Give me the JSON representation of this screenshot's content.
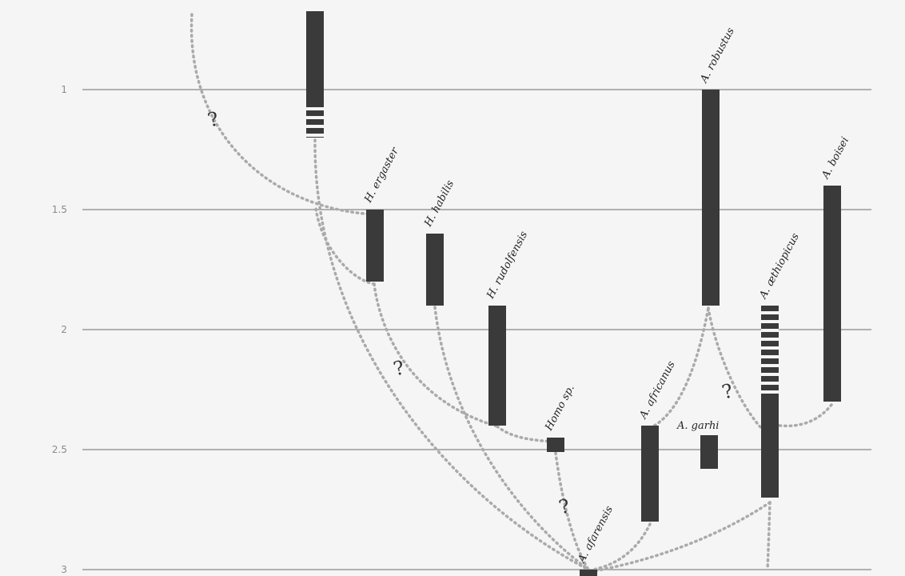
{
  "axis": {
    "ticks": [
      {
        "value": 1,
        "label": "1"
      },
      {
        "value": 1.5,
        "label": "1.5"
      },
      {
        "value": 2,
        "label": "2"
      },
      {
        "value": 2.5,
        "label": "2.5"
      },
      {
        "value": 3,
        "label": "3"
      }
    ]
  },
  "species": [
    {
      "id": "homo-erectus",
      "label": "",
      "start": 1.2,
      "end": 0.6,
      "dashed_from": 1.2,
      "dashed_to": 1.05
    },
    {
      "id": "h-ergaster",
      "label": "H. ergaster",
      "start": 1.8,
      "end": 1.5
    },
    {
      "id": "h-habilis",
      "label": "H. habilis",
      "start": 1.9,
      "end": 1.6
    },
    {
      "id": "h-rudolfensis",
      "label": "H. rudolfensis",
      "start": 2.4,
      "end": 1.9
    },
    {
      "id": "homo-sp",
      "label": "Homo sp.",
      "start": 2.51,
      "end": 2.45
    },
    {
      "id": "a-afarensis",
      "label": "A. afarensis",
      "start": 3.05,
      "end": 3.0
    },
    {
      "id": "a-africanus",
      "label": "A. africanus",
      "start": 2.8,
      "end": 2.4
    },
    {
      "id": "a-garhi",
      "label": "A. garhi",
      "start": 2.58,
      "end": 2.44
    },
    {
      "id": "a-aethiopicus",
      "label": "A. æthiopicus",
      "start": 2.7,
      "end": 1.9,
      "dashed_from": 2.28,
      "dashed_to": 1.9
    },
    {
      "id": "a-robustus",
      "label": "A. robustus",
      "start": 1.9,
      "end": 1.0
    },
    {
      "id": "a-boisei",
      "label": "A. boisei",
      "start": 2.3,
      "end": 1.4
    }
  ],
  "question_mark": "?"
}
